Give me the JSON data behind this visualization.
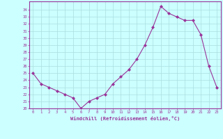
{
  "x": [
    0,
    1,
    2,
    3,
    4,
    5,
    6,
    7,
    8,
    9,
    10,
    11,
    12,
    13,
    14,
    15,
    16,
    17,
    18,
    19,
    20,
    21,
    22,
    23
  ],
  "y": [
    25.0,
    23.5,
    23.0,
    22.5,
    22.0,
    21.5,
    20.0,
    21.0,
    21.5,
    22.0,
    23.5,
    24.5,
    25.5,
    27.0,
    29.0,
    31.5,
    34.5,
    33.5,
    33.0,
    32.5,
    32.5,
    30.5,
    26.0,
    23.0
  ],
  "xlabel": "Windchill (Refroidissement éolien,°C)",
  "ylim": [
    20,
    35
  ],
  "xlim": [
    -0.5,
    23.5
  ],
  "yticks": [
    20,
    21,
    22,
    23,
    24,
    25,
    26,
    27,
    28,
    29,
    30,
    31,
    32,
    33,
    34
  ],
  "xticks": [
    0,
    1,
    2,
    3,
    4,
    5,
    6,
    7,
    8,
    9,
    10,
    11,
    12,
    13,
    14,
    15,
    16,
    17,
    18,
    19,
    20,
    21,
    22,
    23
  ],
  "line_color": "#993399",
  "marker": "D",
  "bg_color": "#ccffff",
  "grid_color": "#aadddd",
  "tick_color": "#993399",
  "label_color": "#993399"
}
